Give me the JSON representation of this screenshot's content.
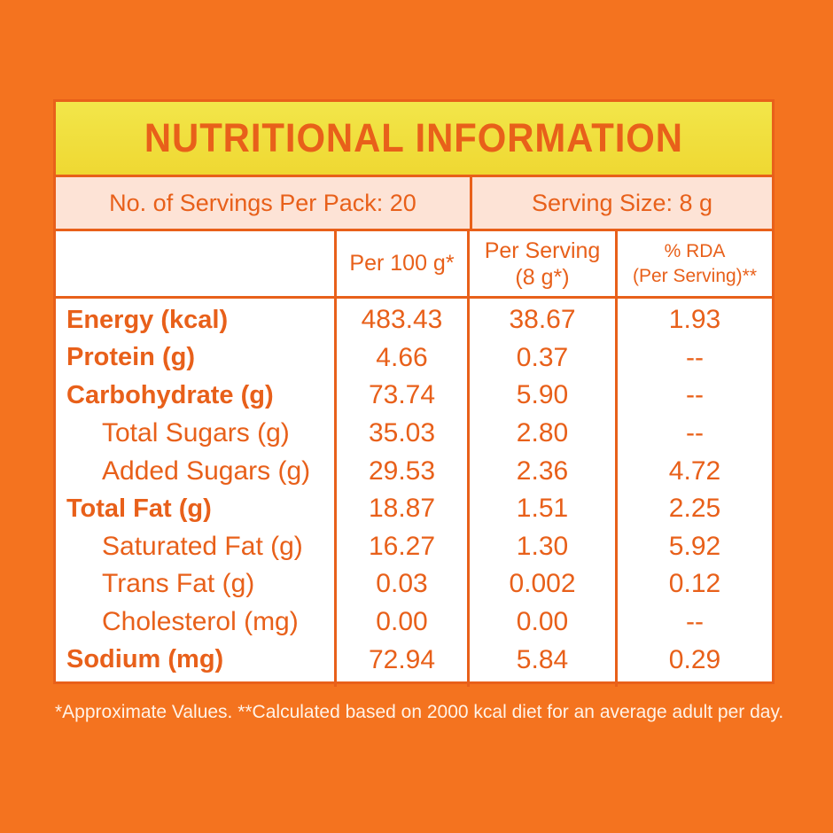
{
  "title": "NUTRITIONAL INFORMATION",
  "servings_per_pack": "No. of Servings Per Pack: 20",
  "serving_size": "Serving Size: 8 g",
  "headers": {
    "per100": "Per 100 g*",
    "per_serving_line1": "Per Serving",
    "per_serving_line2": "(8 g*)",
    "rda_line1": "% RDA",
    "rda_line2": "(Per Serving)**"
  },
  "rows": [
    {
      "name": "Energy (kcal)",
      "per100": "483.43",
      "per_serving": "38.67",
      "rda": "1.93"
    },
    {
      "name": "Protein (g)",
      "per100": "4.66",
      "per_serving": "0.37",
      "rda": "--"
    },
    {
      "name": "Carbohydrate (g)",
      "per100": "73.74",
      "per_serving": "5.90",
      "rda": "--"
    },
    {
      "name": "Total Sugars (g)",
      "per100": "35.03",
      "per_serving": "2.80",
      "rda": "--"
    },
    {
      "name": "Added Sugars (g)",
      "per100": "29.53",
      "per_serving": "2.36",
      "rda": "4.72"
    },
    {
      "name": "Total Fat (g)",
      "per100": "18.87",
      "per_serving": "1.51",
      "rda": "2.25"
    },
    {
      "name": "Saturated Fat (g)",
      "per100": "16.27",
      "per_serving": "1.30",
      "rda": "5.92"
    },
    {
      "name": "Trans Fat (g)",
      "per100": "0.03",
      "per_serving": "0.002",
      "rda": "0.12"
    },
    {
      "name": "Cholesterol (mg)",
      "per100": "0.00",
      "per_serving": "0.00",
      "rda": "--"
    },
    {
      "name": "Sodium (mg)",
      "per100": "72.94",
      "per_serving": "5.84",
      "rda": "0.29"
    }
  ],
  "footnote": "*Approximate Values. **Calculated based on 2000 kcal diet for an average adult per day.",
  "colors": {
    "background": "#f4731f",
    "accent": "#e8601a",
    "title_bar": "#efd832",
    "serving_row": "#fde3d6"
  }
}
